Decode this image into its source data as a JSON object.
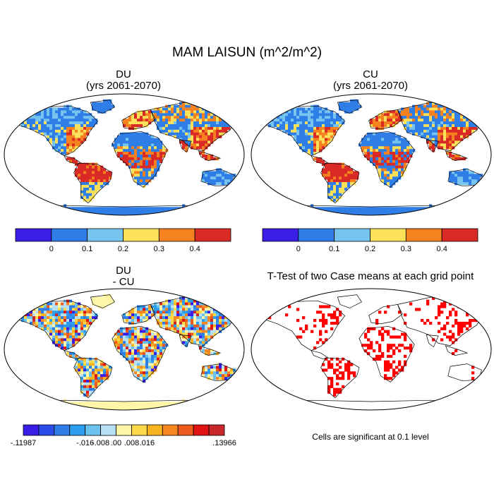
{
  "title": "MAM LAISUN (m^2/m^2)",
  "panels": [
    {
      "id": "du",
      "title_line1": "DU",
      "title_line2": "(yrs 2061-2070)"
    },
    {
      "id": "cu",
      "title_line1": "CU",
      "title_line2": "(yrs 2061-2070)"
    },
    {
      "id": "diff",
      "title_line1": "DU",
      "title_line2": "- CU"
    },
    {
      "id": "ttest",
      "title_line1": "T-Test of two Case means at each grid point",
      "title_line2": ""
    }
  ],
  "ttest_note": "Cells are significant at 0.1 level",
  "colorbars": {
    "main": {
      "colors": [
        "#3a1ee8",
        "#2f7ee8",
        "#77c4ef",
        "#fbe15a",
        "#f5821e",
        "#d92a26"
      ],
      "labels": [
        "0",
        "0.1",
        "0.2",
        "0.3",
        "0.4"
      ]
    },
    "diff": {
      "colors": [
        "#3a1ee8",
        "#2a4ce8",
        "#2f7ee8",
        "#2d9ded",
        "#6cc2ef",
        "#b8e0f4",
        "#fff6a8",
        "#fbd94a",
        "#f7b41e",
        "#f58620",
        "#ec5a1c",
        "#e01414",
        "#c8282a"
      ],
      "labels": [
        "-.11987",
        "-.016",
        "-.008",
        ".00",
        ".008",
        ".016",
        ".13966"
      ]
    }
  },
  "chart_data": [
    {
      "type": "heatmap",
      "title": "DU (yrs 2061-2070)",
      "colorbar_levels": [
        0,
        0.1,
        0.2,
        0.3,
        0.4
      ],
      "grid": false
    },
    {
      "type": "heatmap",
      "title": "CU (yrs 2061-2070)",
      "colorbar_levels": [
        0,
        0.1,
        0.2,
        0.3,
        0.4
      ],
      "grid": false
    },
    {
      "type": "heatmap",
      "title": "DU - CU",
      "colorbar_levels": [
        -0.11987,
        -0.016,
        -0.008,
        0.0,
        0.008,
        0.016,
        0.13966
      ],
      "grid": false
    },
    {
      "type": "heatmap",
      "title": "T-Test of two Case means at each grid point",
      "significance_level": 0.1,
      "grid": false
    }
  ],
  "map_colors": {
    "ocean": "#ffffff",
    "coast": "#000000",
    "significant": "#ff0000"
  }
}
